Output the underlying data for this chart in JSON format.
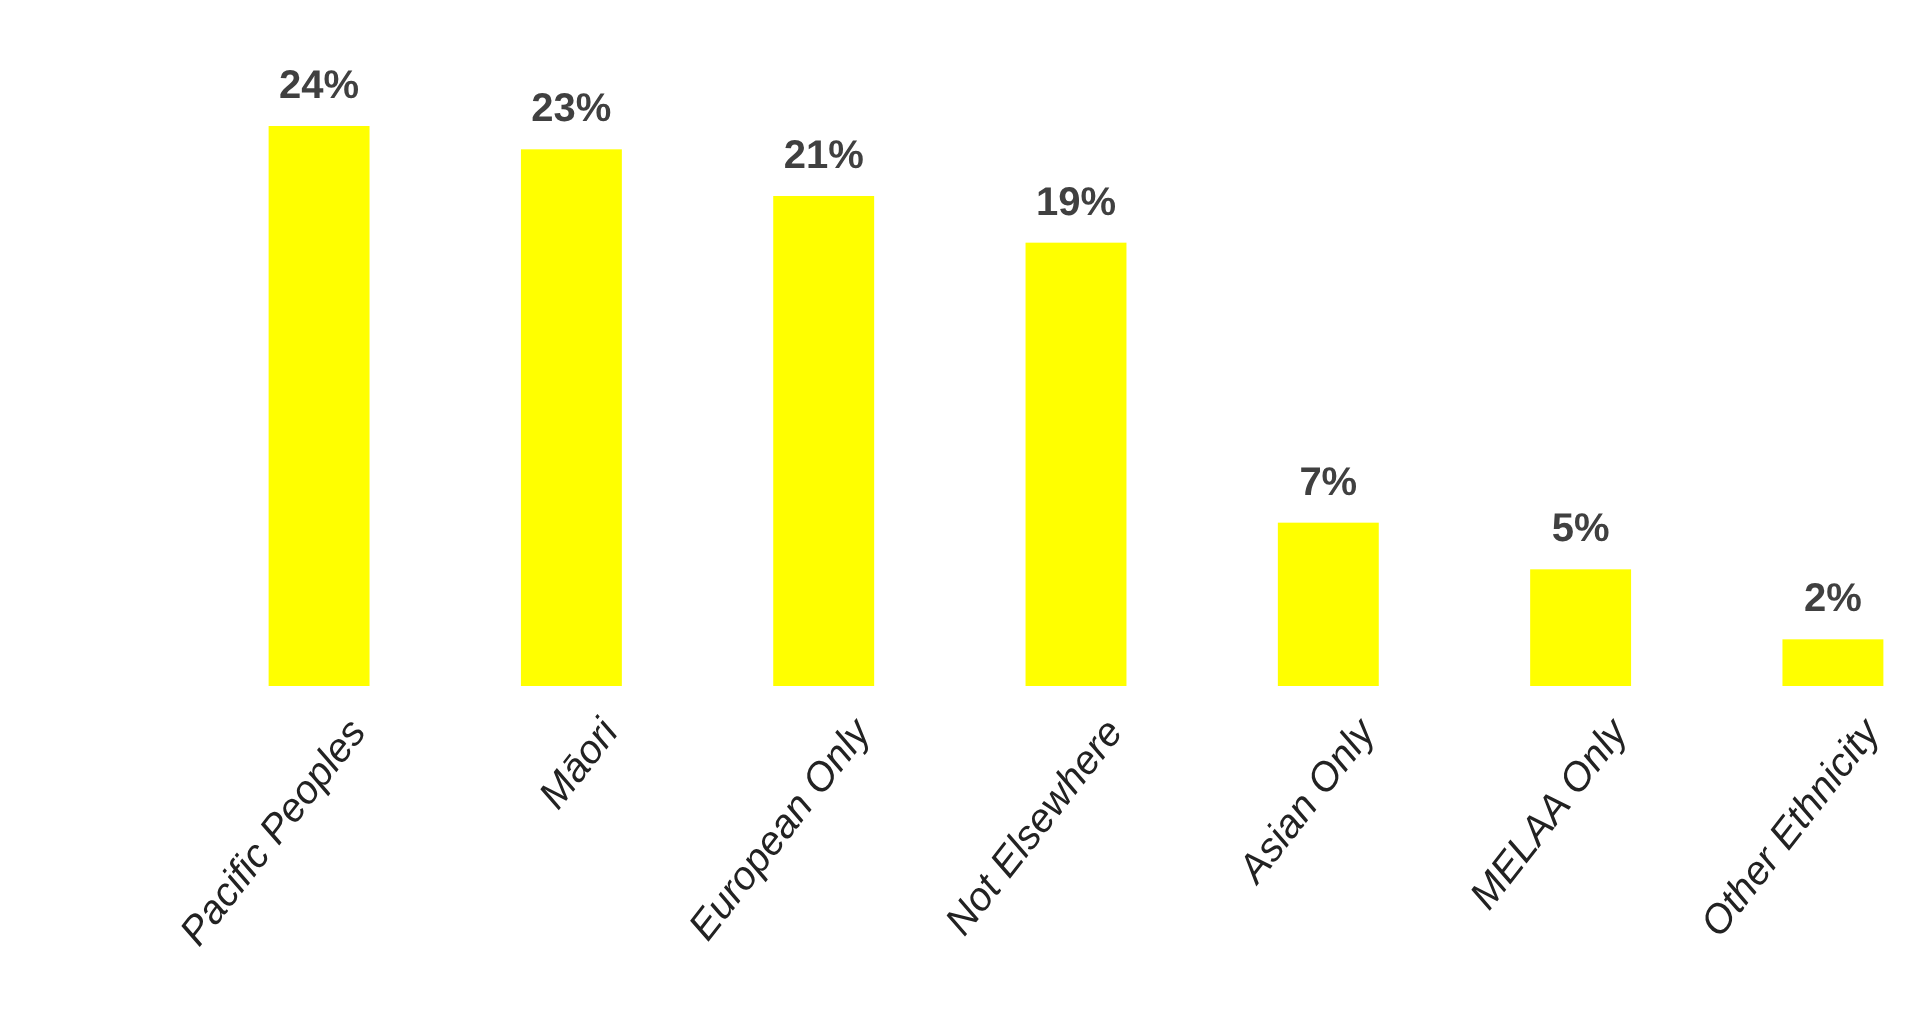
{
  "chart_data": {
    "type": "bar",
    "categories": [
      "Pacific Peoples",
      "Māori",
      "European Only",
      "Not Elsewhere",
      "Asian Only",
      "MELAA Only",
      "Other Ethnicity"
    ],
    "values": [
      24,
      23,
      21,
      19,
      7,
      5,
      2
    ],
    "value_labels": [
      "24%",
      "23%",
      "21%",
      "19%",
      "7%",
      "5%",
      "2%"
    ],
    "color": "#ffff00"
  }
}
